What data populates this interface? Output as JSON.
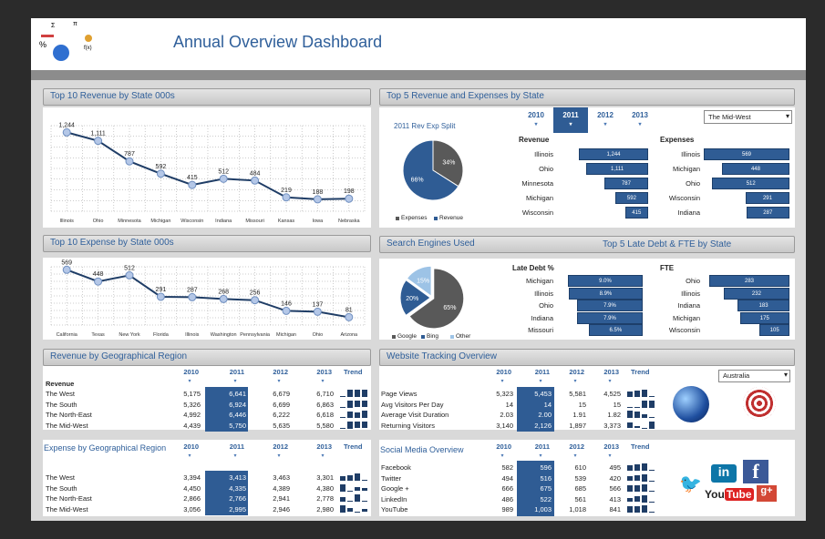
{
  "header": {
    "title": "Annual Overview Dashboard"
  },
  "rev_line": {
    "title": "Top 10 Revenue by State 000s",
    "chart_data": {
      "type": "line",
      "categories": [
        "Illinois",
        "Ohio",
        "Minnesota",
        "Michigan",
        "Wisconsin",
        "Indiana",
        "Missouri",
        "Kansas",
        "Iowa",
        "Nebraska"
      ],
      "values": [
        1244,
        1111,
        787,
        592,
        415,
        512,
        484,
        219,
        188,
        198
      ],
      "labels": [
        "1,244",
        "1,111",
        "787",
        "592",
        "415",
        "512",
        "484",
        "219",
        "188",
        "198"
      ],
      "grid": true
    }
  },
  "exp_line": {
    "title": "Top 10 Expense by State 000s",
    "chart_data": {
      "type": "line",
      "categories": [
        "California",
        "Texas",
        "New York",
        "Florida",
        "Illinois",
        "Washington",
        "Pennsylvania",
        "Michigan",
        "Ohio",
        "Arizona"
      ],
      "values": [
        569,
        448,
        512,
        291,
        287,
        268,
        256,
        146,
        137,
        81
      ],
      "labels": [
        "569",
        "448",
        "512",
        "291",
        "287",
        "268",
        "256",
        "146",
        "137",
        "81"
      ],
      "grid": true
    }
  },
  "top5": {
    "title": "Top 5 Revenue and Expenses by State",
    "years": [
      "2010",
      "2011",
      "2012",
      "2013"
    ],
    "selected_year": "2011",
    "region_select": "The Mid-West",
    "pie": {
      "title": "2011 Rev Exp Split",
      "slices": [
        {
          "name": "Expenses",
          "value": 34,
          "label": "34%",
          "color": "#595959"
        },
        {
          "name": "Revenue",
          "value": 66,
          "label": "66%",
          "color": "#2f5c94"
        }
      ]
    },
    "revenue": {
      "heading": "Revenue",
      "items": [
        {
          "state": "Illinois",
          "value": 1244,
          "label": "1,244"
        },
        {
          "state": "Ohio",
          "value": 1111,
          "label": "1,111"
        },
        {
          "state": "Minnesota",
          "value": 787,
          "label": "787"
        },
        {
          "state": "Michigan",
          "value": 592,
          "label": "592"
        },
        {
          "state": "Wisconsin",
          "value": 415,
          "label": "415"
        }
      ]
    },
    "expenses": {
      "heading": "Expenses",
      "items": [
        {
          "state": "Illinois",
          "value": 569,
          "label": "569"
        },
        {
          "state": "Michigan",
          "value": 448,
          "label": "448"
        },
        {
          "state": "Ohio",
          "value": 512,
          "label": "512"
        },
        {
          "state": "Wisconsin",
          "value": 291,
          "label": "291"
        },
        {
          "state": "Indiana",
          "value": 287,
          "label": "287"
        }
      ]
    }
  },
  "search": {
    "title": "Search Engines Used",
    "slices": [
      {
        "name": "Google",
        "value": 65,
        "label": "65%",
        "color": "#595959"
      },
      {
        "name": "Bing",
        "value": 20,
        "label": "20%",
        "color": "#2f5c94"
      },
      {
        "name": "Other",
        "value": 15,
        "label": "15%",
        "color": "#9dc3e6"
      }
    ]
  },
  "late": {
    "title": "Top 5 Late Debt & FTE by State",
    "debt": {
      "heading": "Late Debt %",
      "items": [
        {
          "state": "Michigan",
          "value": 9.0,
          "label": "9.0%"
        },
        {
          "state": "Illinois",
          "value": 8.9,
          "label": "8.9%"
        },
        {
          "state": "Ohio",
          "value": 7.9,
          "label": "7.9%"
        },
        {
          "state": "Indiana",
          "value": 7.9,
          "label": "7.9%"
        },
        {
          "state": "Missouri",
          "value": 6.5,
          "label": "6.5%"
        }
      ]
    },
    "fte": {
      "heading": "FTE",
      "items": [
        {
          "state": "Ohio",
          "value": 283,
          "label": "283"
        },
        {
          "state": "Illinois",
          "value": 232,
          "label": "232"
        },
        {
          "state": "Indiana",
          "value": 183,
          "label": "183"
        },
        {
          "state": "Michigan",
          "value": 175,
          "label": "175"
        },
        {
          "state": "Wisconsin",
          "value": 105,
          "label": "105"
        }
      ]
    }
  },
  "rev_region": {
    "title": "Revenue by Geographical Region",
    "row_heading": "Revenue",
    "columns": [
      "2010",
      "2011",
      "2012",
      "2013",
      "Trend"
    ],
    "rows": [
      {
        "label": "The West",
        "values": [
          "5,175",
          "6,641",
          "6,679",
          "6,710"
        ]
      },
      {
        "label": "The South",
        "values": [
          "5,326",
          "6,924",
          "6,699",
          "6,863"
        ]
      },
      {
        "label": "The North-East",
        "values": [
          "4,992",
          "6,446",
          "6,222",
          "6,618"
        ]
      },
      {
        "label": "The Mid-West",
        "values": [
          "4,439",
          "5,750",
          "5,635",
          "5,580"
        ]
      }
    ]
  },
  "exp_region": {
    "title": "Expense by Geographical Region",
    "columns": [
      "2010",
      "2011",
      "2012",
      "2013",
      "Trend"
    ],
    "rows": [
      {
        "label": "The West",
        "values": [
          "3,394",
          "3,413",
          "3,463",
          "3,301"
        ]
      },
      {
        "label": "The South",
        "values": [
          "4,450",
          "4,335",
          "4,389",
          "4,380"
        ]
      },
      {
        "label": "The North-East",
        "values": [
          "2,866",
          "2,766",
          "2,941",
          "2,778"
        ]
      },
      {
        "label": "The Mid-West",
        "values": [
          "3,056",
          "2,995",
          "2,946",
          "2,980"
        ]
      }
    ]
  },
  "web": {
    "title": "Website Tracking Overview",
    "columns": [
      "2010",
      "2011",
      "2012",
      "2013",
      "Trend"
    ],
    "country_select": "Australia",
    "rows": [
      {
        "label": "Page Views",
        "values": [
          "5,323",
          "5,453",
          "5,581",
          "4,525"
        ]
      },
      {
        "label": "Avg Visitors Per Day",
        "values": [
          "14",
          "14",
          "15",
          "15"
        ]
      },
      {
        "label": "Average Visit Duration",
        "values": [
          "2.03",
          "2.00",
          "1.91",
          "1.82"
        ]
      },
      {
        "label": "Returning Visitors",
        "values": [
          "3,140",
          "2,126",
          "1,897",
          "3,373"
        ]
      }
    ]
  },
  "social": {
    "title": "Social Media Overview",
    "columns": [
      "2010",
      "2011",
      "2012",
      "2013",
      "Trend"
    ],
    "rows": [
      {
        "label": "Facebook",
        "values": [
          "582",
          "596",
          "610",
          "495"
        ]
      },
      {
        "label": "Twitter",
        "values": [
          "494",
          "516",
          "539",
          "420"
        ]
      },
      {
        "label": "Google +",
        "values": [
          "666",
          "675",
          "685",
          "566"
        ]
      },
      {
        "label": "LinkedIn",
        "values": [
          "486",
          "522",
          "561",
          "413"
        ]
      },
      {
        "label": "YouTube",
        "values": [
          "989",
          "1,003",
          "1,018",
          "841"
        ]
      }
    ],
    "logos": {
      "twitter": "twitter",
      "linkedin": "in",
      "facebook": "f",
      "youtube_a": "You",
      "youtube_b": "Tube",
      "google": "g+"
    }
  },
  "colors": {
    "accent": "#2f5c94",
    "title": "#2f5f9a",
    "panel_bg": "#d9d9d9"
  }
}
